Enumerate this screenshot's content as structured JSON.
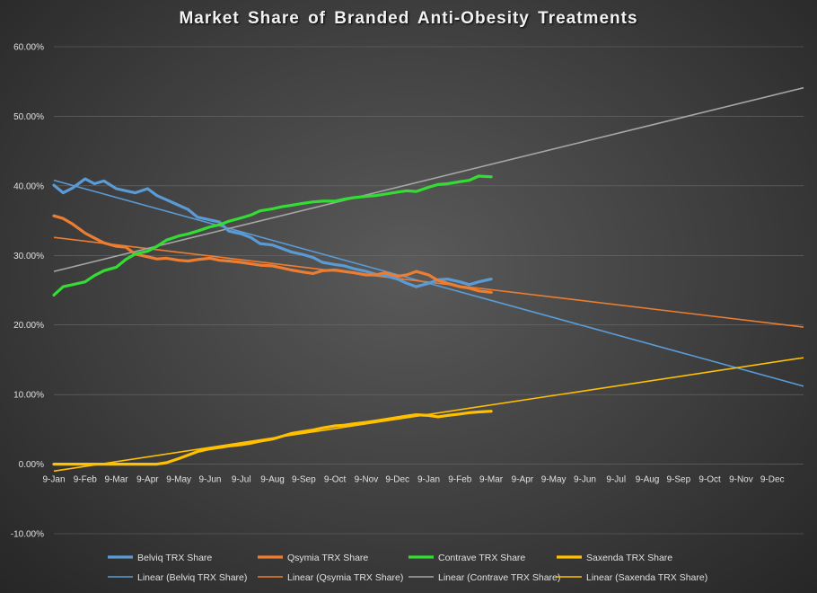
{
  "chart_data": {
    "type": "line",
    "title": "Market Share of Branded Anti-Obesity Treatments",
    "xlabel": "",
    "ylabel": "",
    "ylim": [
      -0.1,
      0.6
    ],
    "yticks": [
      -0.1,
      0.0,
      0.1,
      0.2,
      0.3,
      0.4,
      0.5,
      0.6
    ],
    "ytick_labels": [
      "-10.00%",
      "0.00%",
      "10.00%",
      "20.00%",
      "30.00%",
      "40.00%",
      "50.00%",
      "60.00%"
    ],
    "x_tick_labels": [
      "9-Jan",
      "9-Feb",
      "9-Mar",
      "9-Apr",
      "9-May",
      "9-Jun",
      "9-Jul",
      "9-Aug",
      "9-Sep",
      "9-Oct",
      "9-Nov",
      "9-Dec",
      "9-Jan",
      "9-Feb",
      "9-Mar",
      "9-Apr",
      "9-May",
      "9-Jun",
      "9-Jul",
      "9-Aug",
      "9-Sep",
      "9-Oct",
      "9-Nov",
      "9-Dec"
    ],
    "x_range": [
      0,
      24
    ],
    "grid": true,
    "legend_position": "bottom",
    "series": [
      {
        "name": "Belviq TRX Share",
        "color": "#5b9bd5",
        "x": [
          0,
          0.3,
          0.6,
          1.0,
          1.3,
          1.6,
          2.0,
          2.3,
          2.6,
          3.0,
          3.3,
          3.6,
          4.0,
          4.3,
          4.6,
          5.0,
          5.3,
          5.6,
          6.0,
          6.3,
          6.6,
          7.0,
          7.3,
          7.6,
          8.0,
          8.3,
          8.6,
          9.0,
          9.3,
          9.6,
          10.0,
          10.3,
          10.6,
          11.0,
          11.3,
          11.6,
          12.0,
          12.3,
          12.6,
          13.0,
          13.3,
          13.6,
          14.0
        ],
        "values": [
          0.401,
          0.39,
          0.397,
          0.41,
          0.403,
          0.407,
          0.396,
          0.393,
          0.39,
          0.396,
          0.386,
          0.38,
          0.372,
          0.366,
          0.355,
          0.351,
          0.348,
          0.335,
          0.331,
          0.326,
          0.317,
          0.315,
          0.31,
          0.305,
          0.301,
          0.297,
          0.29,
          0.287,
          0.285,
          0.281,
          0.277,
          0.273,
          0.271,
          0.266,
          0.26,
          0.255,
          0.26,
          0.265,
          0.266,
          0.262,
          0.258,
          0.262,
          0.266
        ]
      },
      {
        "name": "Qsymia TRX Share",
        "color": "#ed7d31",
        "x": [
          0,
          0.3,
          0.6,
          1.0,
          1.3,
          1.6,
          2.0,
          2.3,
          2.6,
          3.0,
          3.3,
          3.6,
          4.0,
          4.3,
          4.6,
          5.0,
          5.3,
          5.6,
          6.0,
          6.3,
          6.6,
          7.0,
          7.3,
          7.6,
          8.0,
          8.3,
          8.6,
          9.0,
          9.3,
          9.6,
          10.0,
          10.3,
          10.6,
          11.0,
          11.3,
          11.6,
          12.0,
          12.3,
          12.6,
          13.0,
          13.3,
          13.6,
          14.0
        ],
        "values": [
          0.357,
          0.353,
          0.345,
          0.332,
          0.325,
          0.318,
          0.313,
          0.312,
          0.302,
          0.298,
          0.295,
          0.296,
          0.293,
          0.292,
          0.294,
          0.296,
          0.293,
          0.292,
          0.29,
          0.288,
          0.286,
          0.285,
          0.282,
          0.279,
          0.276,
          0.274,
          0.278,
          0.279,
          0.277,
          0.275,
          0.272,
          0.272,
          0.275,
          0.27,
          0.272,
          0.277,
          0.272,
          0.264,
          0.26,
          0.255,
          0.253,
          0.249,
          0.247
        ]
      },
      {
        "name": "Contrave TRX Share",
        "color": "#33dd33",
        "x": [
          0,
          0.3,
          0.6,
          1.0,
          1.3,
          1.6,
          2.0,
          2.3,
          2.6,
          3.0,
          3.3,
          3.6,
          4.0,
          4.3,
          4.6,
          5.0,
          5.3,
          5.6,
          6.0,
          6.3,
          6.6,
          7.0,
          7.3,
          7.6,
          8.0,
          8.3,
          8.6,
          9.0,
          9.3,
          9.6,
          10.0,
          10.3,
          10.6,
          11.0,
          11.3,
          11.6,
          12.0,
          12.3,
          12.6,
          13.0,
          13.3,
          13.6,
          14.0
        ],
        "values": [
          0.243,
          0.255,
          0.258,
          0.262,
          0.271,
          0.278,
          0.283,
          0.294,
          0.302,
          0.306,
          0.313,
          0.322,
          0.328,
          0.331,
          0.335,
          0.341,
          0.344,
          0.349,
          0.354,
          0.358,
          0.364,
          0.367,
          0.37,
          0.372,
          0.375,
          0.377,
          0.378,
          0.378,
          0.381,
          0.383,
          0.385,
          0.386,
          0.388,
          0.391,
          0.393,
          0.392,
          0.398,
          0.402,
          0.403,
          0.406,
          0.408,
          0.414,
          0.413
        ]
      },
      {
        "name": "Saxenda TRX Share",
        "color": "#ffc000",
        "x": [
          0,
          0.3,
          0.6,
          1.0,
          1.3,
          1.6,
          2.0,
          2.3,
          2.6,
          3.0,
          3.3,
          3.6,
          4.0,
          4.3,
          4.6,
          5.0,
          5.3,
          5.6,
          6.0,
          6.3,
          6.6,
          7.0,
          7.3,
          7.6,
          8.0,
          8.3,
          8.6,
          9.0,
          9.3,
          9.6,
          10.0,
          10.3,
          10.6,
          11.0,
          11.3,
          11.6,
          12.0,
          12.3,
          12.6,
          13.0,
          13.3,
          13.6,
          14.0
        ],
        "values": [
          0.0,
          0.0,
          0.0,
          0.0,
          0.0,
          0.0,
          0.0,
          0.0,
          0.0,
          0.0,
          0.0,
          0.002,
          0.008,
          0.013,
          0.018,
          0.022,
          0.024,
          0.026,
          0.028,
          0.03,
          0.033,
          0.036,
          0.04,
          0.044,
          0.047,
          0.049,
          0.052,
          0.055,
          0.056,
          0.058,
          0.06,
          0.062,
          0.064,
          0.067,
          0.069,
          0.071,
          0.07,
          0.068,
          0.07,
          0.072,
          0.074,
          0.075,
          0.076
        ]
      }
    ],
    "trendlines": [
      {
        "name": "Linear (Belviq TRX Share)",
        "color": "#5b9bd5",
        "x": [
          0,
          24
        ],
        "values": [
          0.408,
          0.112
        ]
      },
      {
        "name": "Linear (Qsymia TRX Share)",
        "color": "#ed7d31",
        "x": [
          0,
          24
        ],
        "values": [
          0.326,
          0.197
        ]
      },
      {
        "name": "Linear (Contrave TRX Share)",
        "color": "#a6a6a6",
        "x": [
          0,
          24
        ],
        "values": [
          0.277,
          0.541
        ]
      },
      {
        "name": "Linear (Saxenda TRX Share)",
        "color": "#ffc000",
        "x": [
          0,
          24
        ],
        "values": [
          -0.01,
          0.153
        ]
      }
    ]
  }
}
